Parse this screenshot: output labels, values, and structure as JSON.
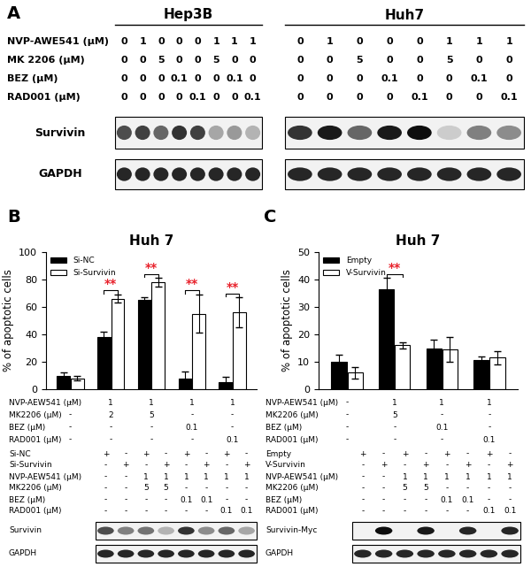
{
  "panel_a": {
    "label": "A",
    "row_labels": [
      "NVP-AWE541 (µM)",
      "MK 2206 (µM)",
      "BEZ (µM)",
      "RAD001 (µM)"
    ],
    "band_labels": [
      "Survivin",
      "GAPDH"
    ],
    "blots": [
      {
        "title": "Hep3B",
        "treatments": [
          [
            "0",
            "1",
            "0",
            "0",
            "0",
            "1",
            "1",
            "1"
          ],
          [
            "0",
            "0",
            "5",
            "0",
            "0",
            "5",
            "0",
            "0"
          ],
          [
            "0",
            "0",
            "0",
            "0.1",
            "0",
            "0",
            "0.1",
            "0"
          ],
          [
            "0",
            "0",
            "0",
            "0",
            "0.1",
            "0",
            "0",
            "0.1"
          ]
        ],
        "intensity": [
          [
            0.7,
            0.75,
            0.6,
            0.8,
            0.75,
            0.35,
            0.4,
            0.3
          ],
          [
            0.85,
            0.85,
            0.85,
            0.85,
            0.85,
            0.85,
            0.85,
            0.85
          ]
        ]
      },
      {
        "title": "Huh7",
        "treatments": [
          [
            "0",
            "1",
            "0",
            "0",
            "0",
            "1",
            "1",
            "1"
          ],
          [
            "0",
            "0",
            "5",
            "0",
            "0",
            "5",
            "0",
            "0"
          ],
          [
            "0",
            "0",
            "0",
            "0.1",
            "0",
            "0",
            "0.1",
            "0"
          ],
          [
            "0",
            "0",
            "0",
            "0",
            "0.1",
            "0",
            "0",
            "0.1"
          ]
        ],
        "intensity": [
          [
            0.8,
            0.9,
            0.6,
            0.9,
            0.95,
            0.2,
            0.5,
            0.45
          ],
          [
            0.85,
            0.85,
            0.85,
            0.85,
            0.85,
            0.85,
            0.85,
            0.85
          ]
        ]
      }
    ]
  },
  "chart_data": [
    {
      "type": "bar",
      "panel": "B",
      "title": "Huh 7",
      "y_label": "% of apoptotic cells",
      "ylim": [
        0,
        100
      ],
      "yticks": [
        0,
        20,
        40,
        60,
        80,
        100
      ],
      "tick_labels": "y",
      "legend": "upper left",
      "series": [
        {
          "name": "Si-NC",
          "color": "#000000",
          "values": [
            10,
            38,
            65,
            8,
            5
          ],
          "errors": [
            2,
            4,
            2,
            5,
            4
          ]
        },
        {
          "name": "Si-Survivin",
          "color": "#ffffff",
          "values": [
            8,
            66,
            78,
            55,
            56
          ],
          "errors": [
            1.5,
            3,
            3,
            14,
            11
          ]
        }
      ],
      "significance": [
        {
          "group": 1,
          "text": "**"
        },
        {
          "group": 2,
          "text": "**"
        },
        {
          "group": 3,
          "text": "**"
        },
        {
          "group": 4,
          "text": "**"
        }
      ],
      "treatments": [
        {
          "label": "NVP-AEW541 (µM)",
          "values": [
            "-",
            "1",
            "1",
            "1",
            "1"
          ]
        },
        {
          "label": "MK2206 (µM)",
          "values": [
            "-",
            "2",
            "5",
            "-",
            "-"
          ]
        },
        {
          "label": "BEZ (µM)",
          "values": [
            "-",
            "-",
            "-",
            "0.1",
            "-"
          ]
        },
        {
          "label": "RAD001 (µM)",
          "values": [
            "-",
            "-",
            "-",
            "-",
            "0.1"
          ]
        }
      ],
      "blot": {
        "lanes": [
          {
            "label": "Si-NC",
            "values": [
              "+",
              "-",
              "+",
              "-",
              "+",
              "-",
              "+",
              "-"
            ]
          },
          {
            "label": "Si-Survivin",
            "values": [
              "-",
              "+",
              "-",
              "+",
              "-",
              "+",
              "-",
              "+"
            ]
          },
          {
            "label": "NVP-AEW541 (µM)",
            "values": [
              "-",
              "-",
              "1",
              "1",
              "1",
              "1",
              "1",
              "1"
            ]
          },
          {
            "label": "MK2206 (µM)",
            "values": [
              "-",
              "-",
              "5",
              "5",
              "-",
              "-",
              "-",
              "-"
            ]
          },
          {
            "label": "BEZ (µM)",
            "values": [
              "-",
              "-",
              "-",
              "-",
              "0.1",
              "0.1",
              "-",
              "-"
            ]
          },
          {
            "label": "RAD001 (µM)",
            "values": [
              "-",
              "-",
              "-",
              "-",
              "-",
              "-",
              "0.1",
              "0.1"
            ]
          }
        ],
        "bands": [
          {
            "label": "Survivin",
            "intensity": [
              0.7,
              0.5,
              0.55,
              0.3,
              0.8,
              0.45,
              0.6,
              0.35
            ]
          },
          {
            "label": "GAPDH",
            "intensity": [
              0.85,
              0.85,
              0.85,
              0.85,
              0.85,
              0.85,
              0.85,
              0.85
            ]
          }
        ]
      }
    },
    {
      "type": "bar",
      "panel": "C",
      "title": "Huh 7",
      "y_label": "% of apoptotic cells",
      "ylim": [
        0,
        50
      ],
      "yticks": [
        0,
        10,
        20,
        30,
        40,
        50
      ],
      "tick_labels": "y",
      "legend": "upper left",
      "series": [
        {
          "name": "Empty",
          "color": "#000000",
          "values": [
            10,
            36.5,
            15,
            10.5
          ],
          "errors": [
            2.5,
            4,
            3,
            1.5
          ]
        },
        {
          "name": "V-Survivin",
          "color": "#ffffff",
          "values": [
            6,
            16,
            14.5,
            11.5
          ],
          "errors": [
            2,
            1,
            4.5,
            2.5
          ]
        }
      ],
      "significance": [
        {
          "group": 1,
          "text": "**"
        }
      ],
      "treatments": [
        {
          "label": "NVP-AEW541 (µM)",
          "values": [
            "-",
            "1",
            "1",
            "1"
          ]
        },
        {
          "label": "MK2206 (µM)",
          "values": [
            "-",
            "5",
            "-",
            "-"
          ]
        },
        {
          "label": "BEZ (µM)",
          "values": [
            "-",
            "-",
            "0.1",
            "-"
          ]
        },
        {
          "label": "RAD001 (µM)",
          "values": [
            "-",
            "-",
            "-",
            "0.1"
          ]
        }
      ],
      "blot": {
        "lanes": [
          {
            "label": "Empty",
            "values": [
              "+",
              "-",
              "+",
              "-",
              "+",
              "-",
              "+",
              "-"
            ]
          },
          {
            "label": "V-Survivin",
            "values": [
              "-",
              "+",
              "-",
              "+",
              "-",
              "+",
              "-",
              "+"
            ]
          },
          {
            "label": "NVP-AEW541 (µM)",
            "values": [
              "-",
              "-",
              "1",
              "1",
              "1",
              "1",
              "1",
              "1"
            ]
          },
          {
            "label": "MK2206 (µM)",
            "values": [
              "-",
              "-",
              "5",
              "5",
              "-",
              "-",
              "-",
              "-"
            ]
          },
          {
            "label": "BEZ (µM)",
            "values": [
              "-",
              "-",
              "-",
              "-",
              "0.1",
              "0.1",
              "-",
              "-"
            ]
          },
          {
            "label": "RAD001 (µM)",
            "values": [
              "-",
              "-",
              "-",
              "-",
              "-",
              "-",
              "0.1",
              "0.1"
            ]
          }
        ],
        "bands": [
          {
            "label": "Survivin-Myc",
            "intensity": [
              0.05,
              0.95,
              0.05,
              0.9,
              0.05,
              0.85,
              0.05,
              0.85
            ]
          },
          {
            "label": "GAPDH",
            "intensity": [
              0.85,
              0.85,
              0.85,
              0.85,
              0.85,
              0.85,
              0.85,
              0.85
            ]
          }
        ]
      }
    }
  ]
}
